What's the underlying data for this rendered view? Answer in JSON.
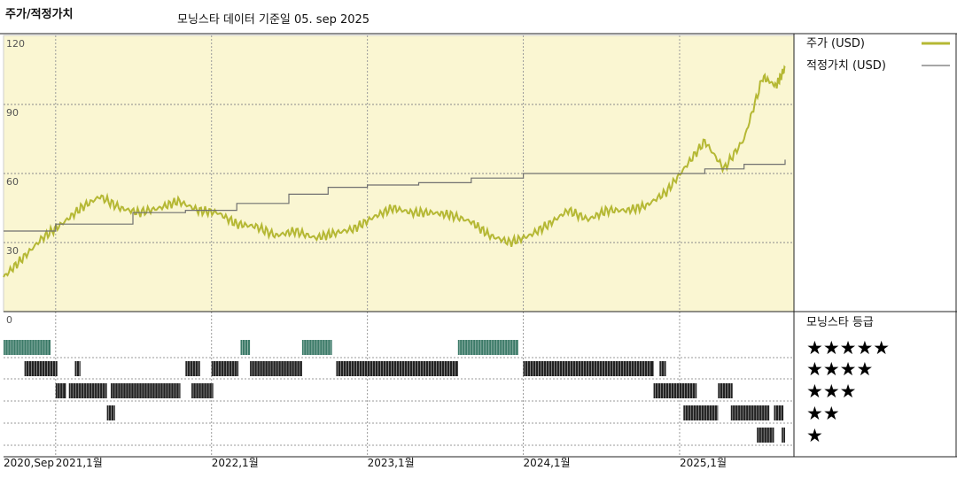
{
  "header": {
    "panel_label": "주가/적정가치",
    "source_note": "모닝스타 데이터 기준일 05. sep 2025"
  },
  "legend": {
    "price_label": "주가 (USD)",
    "fair_label": "적정가치 (USD)",
    "rating_title": "모닝스타 등급"
  },
  "colors": {
    "plot_bg": "#faf6d2",
    "price_line": "#b5b834",
    "fair_line": "#707070",
    "rating_5star": "#3c7a68",
    "rating_other": "#222222"
  },
  "chart_data": {
    "type": "line",
    "title": "",
    "xlabel": "",
    "ylabel": "",
    "ylim": [
      0,
      120
    ],
    "yticks": [
      "0",
      "30",
      "60",
      "90",
      "120"
    ],
    "x_tick_labels": [
      "2020,Sep",
      "2021,1월",
      "2022,1월",
      "2023,1월",
      "2024,1월",
      "2025,1월"
    ],
    "x_tick_dates": [
      "2020-09-01",
      "2021-01-01",
      "2022-01-01",
      "2023-01-01",
      "2024-01-01",
      "2025-01-01"
    ],
    "x_range": [
      "2020-09-01",
      "2025-09-05"
    ],
    "series": [
      {
        "name": "주가 (USD)",
        "x": [
          "2020-09-01",
          "2020-10-15",
          "2020-12-01",
          "2021-01-15",
          "2021-03-01",
          "2021-04-15",
          "2021-06-01",
          "2021-07-15",
          "2021-09-01",
          "2021-10-15",
          "2021-12-01",
          "2022-01-15",
          "2022-03-01",
          "2022-04-15",
          "2022-06-01",
          "2022-07-15",
          "2022-09-01",
          "2022-10-15",
          "2022-12-01",
          "2023-01-15",
          "2023-03-01",
          "2023-04-15",
          "2023-06-01",
          "2023-07-15",
          "2023-09-01",
          "2023-10-15",
          "2023-12-01",
          "2024-01-15",
          "2024-03-01",
          "2024-04-15",
          "2024-06-01",
          "2024-07-15",
          "2024-09-01",
          "2024-10-15",
          "2024-12-01",
          "2025-01-15",
          "2025-03-01",
          "2025-04-15",
          "2025-06-01",
          "2025-07-15",
          "2025-08-15",
          "2025-09-05"
        ],
        "values": [
          15,
          23,
          32,
          38,
          45,
          50,
          45,
          43,
          45,
          48,
          44,
          43,
          38,
          37,
          33,
          35,
          32,
          34,
          36,
          41,
          45,
          43,
          43,
          42,
          39,
          33,
          30,
          33,
          38,
          44,
          40,
          44,
          44,
          46,
          52,
          63,
          74,
          62,
          75,
          102,
          98,
          106
        ]
      },
      {
        "name": "적정가치 (USD)",
        "x": [
          "2020-09-01",
          "2021-01-01",
          "2021-07-01",
          "2021-11-01",
          "2022-03-01",
          "2022-07-01",
          "2022-10-01",
          "2023-01-01",
          "2023-05-01",
          "2023-09-01",
          "2024-01-01",
          "2024-06-01",
          "2024-09-01",
          "2025-01-01",
          "2025-03-01",
          "2025-06-01",
          "2025-09-05"
        ],
        "values": [
          35,
          38,
          43,
          44,
          47,
          51,
          54,
          55,
          56,
          58,
          60,
          60,
          60,
          60,
          62,
          64,
          66
        ]
      }
    ],
    "ratings": {
      "title": "모닝스타 등급",
      "levels": [
        "★★★★★",
        "★★★★",
        "★★★",
        "★★",
        "★"
      ],
      "periods": [
        {
          "stars": 5,
          "start": "2020-09-01",
          "end": "2020-12-20"
        },
        {
          "stars": 5,
          "start": "2022-03-10",
          "end": "2022-04-01"
        },
        {
          "stars": 5,
          "start": "2022-08-01",
          "end": "2022-10-10"
        },
        {
          "stars": 5,
          "start": "2023-08-01",
          "end": "2023-12-20"
        },
        {
          "stars": 4,
          "start": "2020-10-20",
          "end": "2021-01-05"
        },
        {
          "stars": 4,
          "start": "2021-02-15",
          "end": "2021-02-28"
        },
        {
          "stars": 4,
          "start": "2021-11-01",
          "end": "2021-12-05"
        },
        {
          "stars": 4,
          "start": "2022-01-01",
          "end": "2022-03-05"
        },
        {
          "stars": 4,
          "start": "2022-04-01",
          "end": "2022-08-01"
        },
        {
          "stars": 4,
          "start": "2022-10-20",
          "end": "2023-08-01"
        },
        {
          "stars": 4,
          "start": "2024-01-01",
          "end": "2024-11-01"
        },
        {
          "stars": 4,
          "start": "2024-11-15",
          "end": "2024-11-30"
        },
        {
          "stars": 3,
          "start": "2021-01-01",
          "end": "2021-01-25"
        },
        {
          "stars": 3,
          "start": "2021-02-01",
          "end": "2021-05-01"
        },
        {
          "stars": 3,
          "start": "2021-05-10",
          "end": "2021-10-20"
        },
        {
          "stars": 3,
          "start": "2021-11-15",
          "end": "2022-01-05"
        },
        {
          "stars": 3,
          "start": "2024-11-01",
          "end": "2025-02-10"
        },
        {
          "stars": 3,
          "start": "2025-04-01",
          "end": "2025-05-05"
        },
        {
          "stars": 2,
          "start": "2021-05-01",
          "end": "2021-05-20"
        },
        {
          "stars": 2,
          "start": "2025-01-10",
          "end": "2025-04-01"
        },
        {
          "stars": 2,
          "start": "2025-05-01",
          "end": "2025-07-30"
        },
        {
          "stars": 2,
          "start": "2025-08-10",
          "end": "2025-09-01"
        },
        {
          "stars": 1,
          "start": "2025-07-01",
          "end": "2025-08-10"
        },
        {
          "stars": 1,
          "start": "2025-08-28",
          "end": "2025-09-05"
        }
      ]
    }
  }
}
